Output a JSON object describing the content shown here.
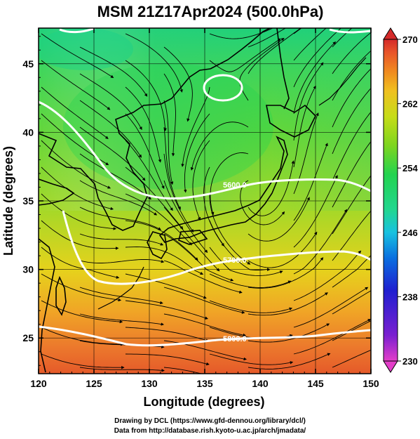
{
  "title": "MSM 21Z17Apr2024 (500.0hPa)",
  "map": {
    "xlabel": "Longitude (degrees)",
    "ylabel": "Latitude  (degrees)",
    "lon_range": [
      120,
      150
    ],
    "lat_range": [
      22.4,
      47.6
    ],
    "lon_ticks": [
      "120",
      "125",
      "130",
      "135",
      "140",
      "145",
      "150"
    ],
    "lat_ticks": [
      "25",
      "30",
      "35",
      "40",
      "45"
    ],
    "contours": [
      {
        "label": "5600.0"
      },
      {
        "label": "5700.0"
      },
      {
        "label": "5800.0"
      }
    ],
    "field": "temperature (K), 500 hPa, with streamlines and geopotential height contours"
  },
  "colorbar": {
    "min": 230,
    "max": 270,
    "tick_labels": [
      "270",
      "262",
      "254",
      "246",
      "238",
      "230"
    ],
    "colors": [
      "#e33ec9",
      "#7a1fd0",
      "#1f1fd0",
      "#0a6fe0",
      "#18c2e0",
      "#22d690",
      "#23d34f",
      "#7ed51f",
      "#c6dc18",
      "#f0c020",
      "#f08a20",
      "#e8542a",
      "#d42a2a"
    ]
  },
  "credits": {
    "line1": "Drawing by DCL (https://www.gfd-dennou.org/library/dcl/)",
    "line2": "Data from http://database.rish.kyoto-u.ac.jp/arch/jmadata/"
  }
}
